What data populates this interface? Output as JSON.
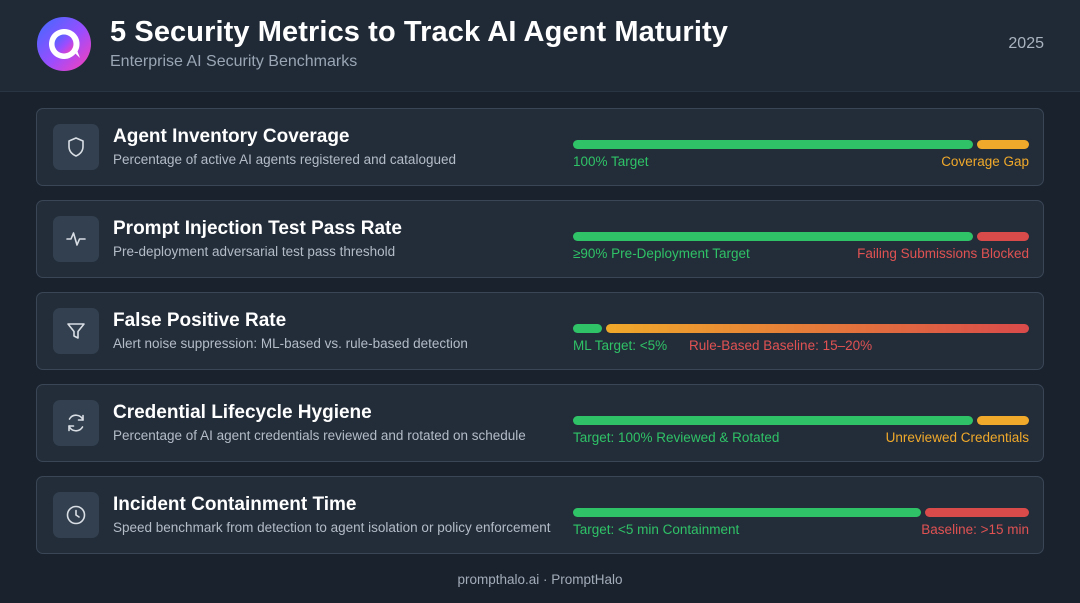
{
  "header": {
    "title": "5 Security Metrics to Track AI Agent Maturity",
    "subtitle": "Enterprise AI Security Benchmarks",
    "year": "2025"
  },
  "colors": {
    "green": "#2fc266",
    "amber": "#f0a92a",
    "red": "#d94a4a",
    "card_bg": "#232d3a",
    "page_bg": "#1a222e"
  },
  "metrics": [
    {
      "icon": "shield-icon",
      "title": "Agent Inventory Coverage",
      "description": "Percentage of active AI agents registered and catalogued",
      "left_label": "100% Target",
      "right_label": "Coverage Gap",
      "left_share": 0.885,
      "left_color": "green",
      "right_color": "amber"
    },
    {
      "icon": "pulse-icon",
      "title": "Prompt Injection Test Pass Rate",
      "description": "Pre-deployment adversarial test pass threshold",
      "left_label": "≥90% Pre-Deployment Target",
      "right_label": "Failing Submissions Blocked",
      "left_share": 0.885,
      "left_color": "green",
      "right_color": "red"
    },
    {
      "icon": "filter-icon",
      "title": "False Positive Rate",
      "description": "Alert noise suppression: ML-based vs. rule-based detection",
      "left_label": "ML Target: <5%",
      "right_label": "Rule-Based Baseline: 15–20%",
      "left_share": 0.065,
      "left_color": "green",
      "right_color": "gradient"
    },
    {
      "icon": "refresh-icon",
      "title": "Credential Lifecycle Hygiene",
      "description": "Percentage of AI agent credentials reviewed and rotated on schedule",
      "left_label": "Target: 100% Reviewed & Rotated",
      "right_label": "Unreviewed Credentials",
      "left_share": 0.885,
      "left_color": "green",
      "right_color": "amber"
    },
    {
      "icon": "clock-icon",
      "title": "Incident Containment Time",
      "description": "Speed benchmark from detection to agent isolation or policy enforcement",
      "left_label": "Target: <5 min Containment",
      "right_label": "Baseline: >15 min",
      "left_share": 0.77,
      "left_color": "green",
      "right_color": "red"
    }
  ],
  "footer": "prompthalo.ai · PromptHalo"
}
